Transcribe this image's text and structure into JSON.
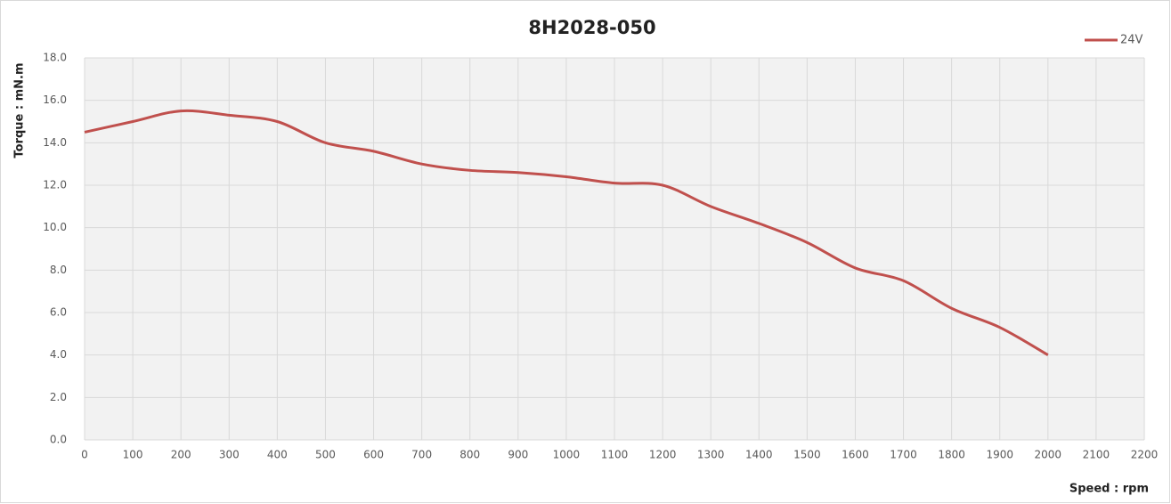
{
  "chart_data": {
    "type": "line",
    "title": "8H2028-050",
    "x_label": "Speed : rpm",
    "y_label": "Torque : mN.m",
    "x": [
      0,
      100,
      200,
      300,
      400,
      500,
      600,
      700,
      800,
      900,
      1000,
      1100,
      1200,
      1300,
      1400,
      1500,
      1600,
      1700,
      1800,
      1900,
      2000
    ],
    "series": [
      {
        "name": "24V",
        "color": "#c0504d",
        "values": [
          14.5,
          15.0,
          15.5,
          15.3,
          15.0,
          14.0,
          13.6,
          13.0,
          12.7,
          12.6,
          12.4,
          12.1,
          12.0,
          11.0,
          10.2,
          9.3,
          8.1,
          7.5,
          6.2,
          5.3,
          4.0
        ]
      }
    ],
    "xlim": [
      0,
      2200
    ],
    "xticks": [
      0,
      100,
      200,
      300,
      400,
      500,
      600,
      700,
      800,
      900,
      1000,
      1100,
      1200,
      1300,
      1400,
      1500,
      1600,
      1700,
      1800,
      1900,
      2000,
      2100,
      2200
    ],
    "ylim": [
      0,
      18
    ],
    "yticks": [
      {
        "value": 0,
        "label": "0.0"
      },
      {
        "value": 2,
        "label": "2.0"
      },
      {
        "value": 4,
        "label": "4.0"
      },
      {
        "value": 6,
        "label": "6.0"
      },
      {
        "value": 8,
        "label": "8.0"
      },
      {
        "value": 10,
        "label": "10.0"
      },
      {
        "value": 12,
        "label": "12.0"
      },
      {
        "value": 14,
        "label": "14.0"
      },
      {
        "value": 16,
        "label": "16.0"
      },
      {
        "value": 18,
        "label": "18.0"
      }
    ],
    "grid": true,
    "legend": "top-right"
  }
}
